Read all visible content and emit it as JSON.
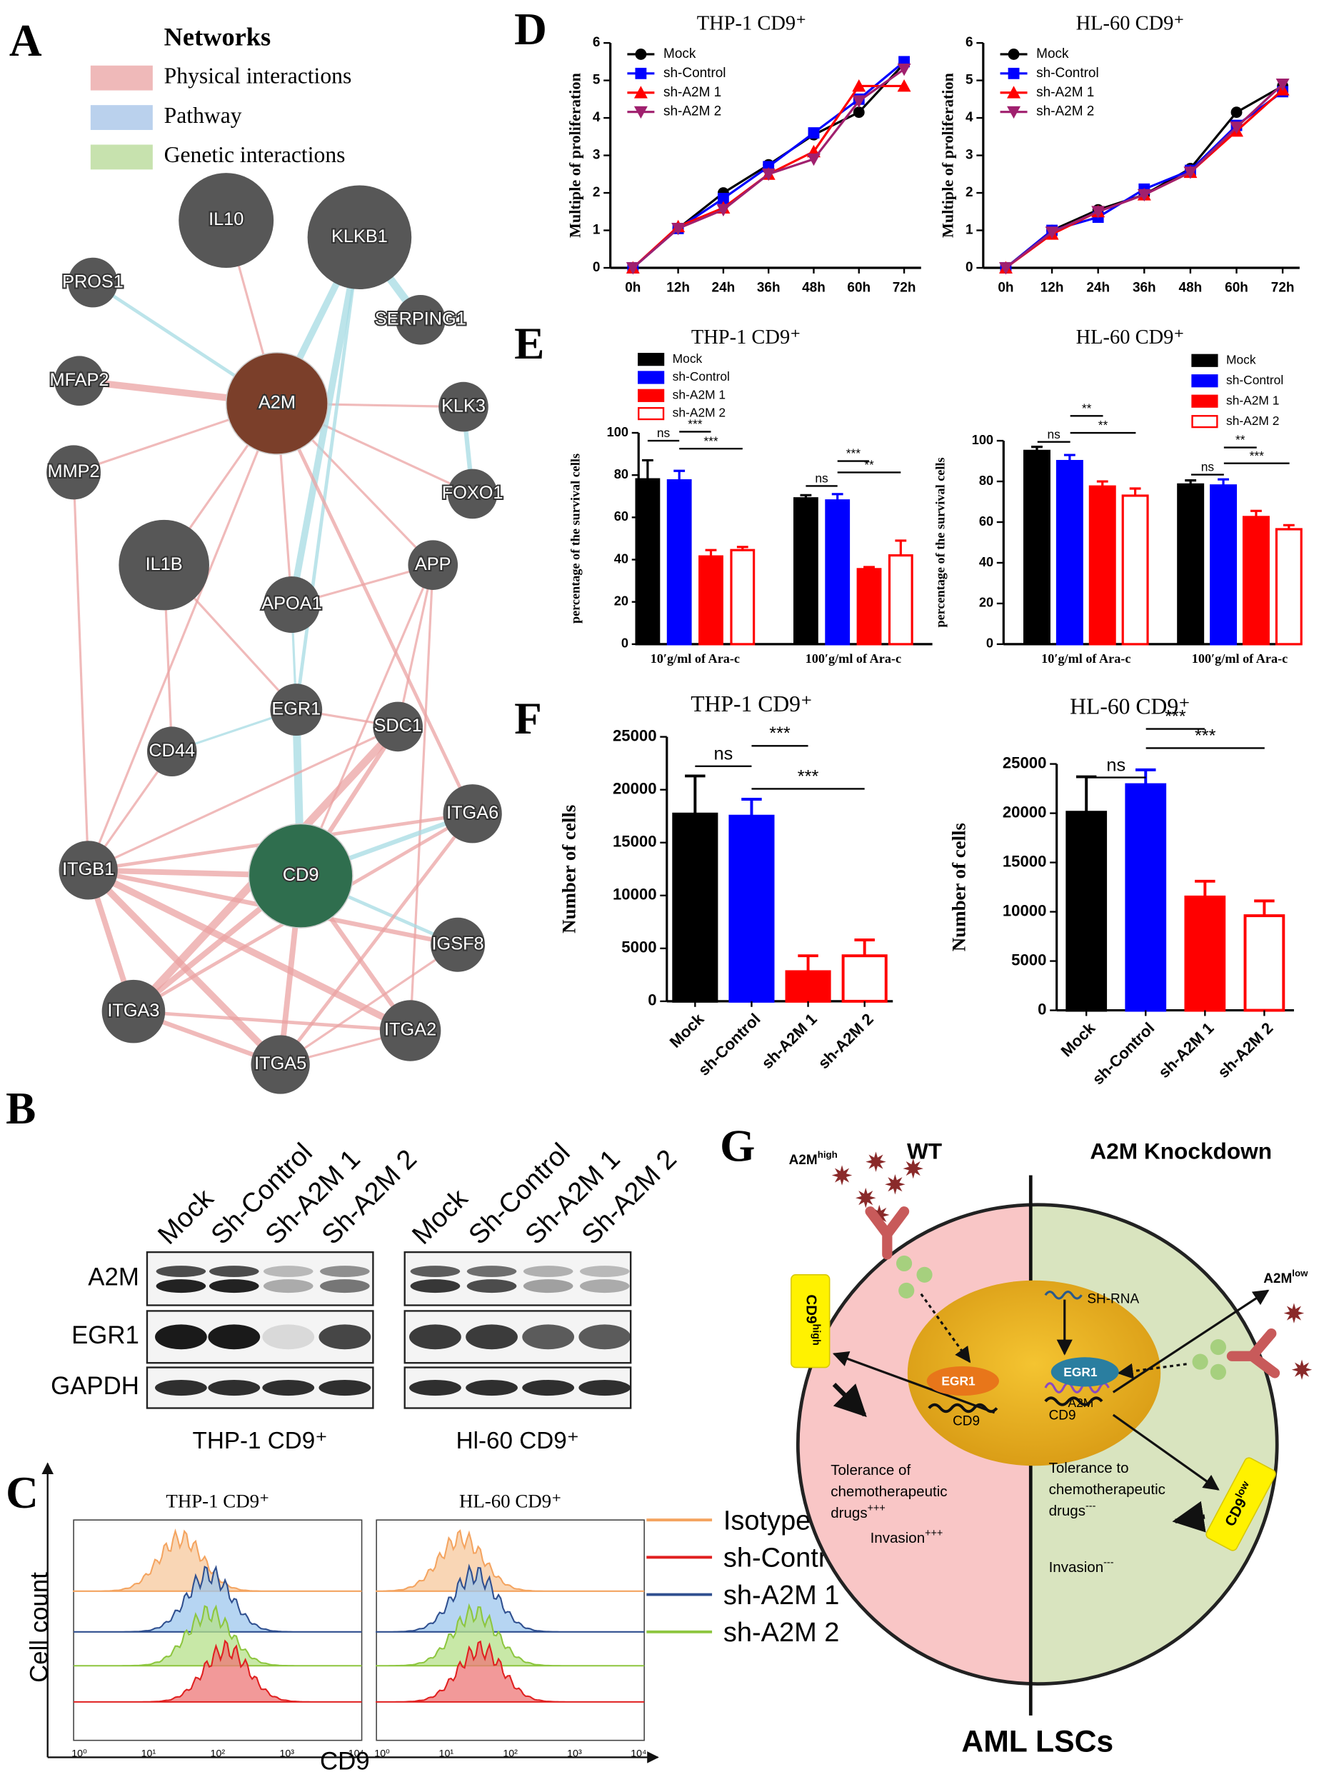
{
  "panel_labels": [
    "A",
    "B",
    "C",
    "D",
    "E",
    "F",
    "G"
  ],
  "network": {
    "legend_title": "Networks",
    "legend": [
      {
        "label": "Physical interactions",
        "color": "#eba8a8"
      },
      {
        "label": "Pathway",
        "color": "#a9c6e8"
      },
      {
        "label": "Genetic interactions",
        "color": "#b9db9a"
      }
    ],
    "nodes": [
      "IL10",
      "KLKB1",
      "PROS1",
      "SERPING1",
      "MFAP2",
      "A2M",
      "KLK3",
      "MMP2",
      "FOXO1",
      "IL1B",
      "APP",
      "APOA1",
      "EGR1",
      "SDC1",
      "CD44",
      "ITGA6",
      "ITGB1",
      "CD9",
      "IGSF8",
      "ITGA3",
      "ITGA2",
      "ITGA5"
    ]
  },
  "blot": {
    "lanes": [
      "Mock",
      "Sh-Control",
      "Sh-A2M 1",
      "Sh-A2M 2"
    ],
    "rows": [
      "A2M",
      "EGR1",
      "GAPDH"
    ],
    "cells": [
      "THP-1 CD9⁺",
      "Hl-60 CD9⁺"
    ]
  },
  "flow": {
    "titles": [
      "THP-1 CD9⁺",
      "HL-60 CD9⁺"
    ],
    "x_label": "CD9",
    "y_label": "Cell count",
    "xticks": [
      "10⁰",
      "10¹",
      "10²",
      "10³",
      "10⁴"
    ],
    "legend": [
      {
        "name": "Isotype",
        "color": "#f4a460"
      },
      {
        "name": "sh-Control",
        "color": "#e02020"
      },
      {
        "name": "sh-A2M 1",
        "color": "#2f4f8f"
      },
      {
        "name": "sh-A2M 2",
        "color": "#8dc63f"
      }
    ]
  },
  "chart_data": [
    {
      "type": "line",
      "title": "THP-1 CD9⁺",
      "y_label": "Multiple of proliferation",
      "categories": [
        "0h",
        "12h",
        "24h",
        "36h",
        "48h",
        "60h",
        "72h"
      ],
      "ylim": [
        0,
        6
      ],
      "yticks": [
        0,
        1,
        2,
        3,
        4,
        5,
        6
      ],
      "series": [
        {
          "name": "Mock",
          "color": "#000000",
          "marker": "circle",
          "values": [
            0,
            1.05,
            2.0,
            2.75,
            3.55,
            4.15,
            5.45
          ]
        },
        {
          "name": "sh-Control",
          "color": "#0000ff",
          "marker": "square",
          "values": [
            0,
            1.05,
            1.85,
            2.7,
            3.6,
            4.5,
            5.5
          ]
        },
        {
          "name": "sh-A2M 1",
          "color": "#ff0000",
          "marker": "triangle",
          "values": [
            0,
            1.1,
            1.6,
            2.5,
            3.1,
            4.85,
            4.85
          ]
        },
        {
          "name": "sh-A2M 2",
          "color": "#a0206e",
          "marker": "triangle-down",
          "values": [
            0,
            1.05,
            1.55,
            2.5,
            2.9,
            4.45,
            5.3
          ]
        }
      ]
    },
    {
      "type": "line",
      "title": "HL-60 CD9⁺",
      "y_label": "Multiple of proliferation",
      "categories": [
        "0h",
        "12h",
        "24h",
        "36h",
        "48h",
        "60h",
        "72h"
      ],
      "ylim": [
        0,
        6
      ],
      "yticks": [
        0,
        1,
        2,
        3,
        4,
        5,
        6
      ],
      "series": [
        {
          "name": "Mock",
          "color": "#000000",
          "marker": "circle",
          "values": [
            0,
            1.0,
            1.55,
            1.95,
            2.65,
            4.15,
            4.85
          ]
        },
        {
          "name": "sh-Control",
          "color": "#0000ff",
          "marker": "square",
          "values": [
            0,
            1.0,
            1.35,
            2.1,
            2.6,
            3.8,
            4.7
          ]
        },
        {
          "name": "sh-A2M 1",
          "color": "#ff0000",
          "marker": "triangle",
          "values": [
            0,
            0.9,
            1.5,
            1.95,
            2.55,
            3.65,
            4.75
          ]
        },
        {
          "name": "sh-A2M 2",
          "color": "#a0206e",
          "marker": "triangle-down",
          "values": [
            0,
            0.95,
            1.5,
            1.95,
            2.55,
            3.75,
            4.9
          ]
        }
      ]
    },
    {
      "type": "grouped-bar",
      "title": "THP-1 CD9⁺",
      "y_label": "percentage of the survival cells",
      "categories": [
        "10′g/ml of Ara-c",
        "100′g/ml of Ara-c"
      ],
      "ylim": [
        0,
        100
      ],
      "yticks": [
        0,
        20,
        40,
        60,
        80,
        100
      ],
      "series": [
        {
          "name": "Mock",
          "color": "#000000",
          "fill": "#000000",
          "values": [
            78,
            69
          ],
          "errors": [
            9,
            1.5
          ]
        },
        {
          "name": "sh-Control",
          "color": "#0000ff",
          "fill": "#0000ff",
          "values": [
            77.5,
            68
          ],
          "errors": [
            4.5,
            3
          ]
        },
        {
          "name": "sh-A2M 1",
          "color": "#ff0000",
          "fill": "#ff0000",
          "values": [
            41.5,
            35.5
          ],
          "errors": [
            3,
            1
          ]
        },
        {
          "name": "sh-A2M 2",
          "color": "#ff0000",
          "fill": "#ffffff",
          "values": [
            44.5,
            42
          ],
          "errors": [
            1.5,
            7
          ]
        }
      ],
      "annotations": [
        "ns",
        "***",
        "***",
        "ns",
        "***",
        "**"
      ]
    },
    {
      "type": "grouped-bar",
      "title": "HL-60 CD9⁺",
      "y_label": "percentage of the survival cells",
      "categories": [
        "10′g/ml of Ara-c",
        "100′g/ml of Ara-c"
      ],
      "ylim": [
        0,
        100
      ],
      "yticks": [
        0,
        20,
        40,
        60,
        80,
        100
      ],
      "series": [
        {
          "name": "Mock",
          "color": "#000000",
          "fill": "#000000",
          "values": [
            95,
            78.5
          ],
          "errors": [
            2,
            2
          ]
        },
        {
          "name": "sh-Control",
          "color": "#0000ff",
          "fill": "#0000ff",
          "values": [
            90,
            78
          ],
          "errors": [
            3,
            3
          ]
        },
        {
          "name": "sh-A2M 1",
          "color": "#ff0000",
          "fill": "#ff0000",
          "values": [
            77.5,
            62.5
          ],
          "errors": [
            2.5,
            3
          ]
        },
        {
          "name": "sh-A2M 2",
          "color": "#ff0000",
          "fill": "#ffffff",
          "values": [
            73,
            56.5
          ],
          "errors": [
            3.5,
            2
          ]
        }
      ],
      "annotations": [
        "ns",
        "**",
        "**",
        "ns",
        "**",
        "***"
      ]
    },
    {
      "type": "bar",
      "title": "THP-1 CD9⁺",
      "y_label": "Number of cells",
      "categories": [
        "Mock",
        "sh-Control",
        "sh-A2M 1",
        "sh-A2M 2"
      ],
      "ylim": [
        0,
        25000
      ],
      "yticks": [
        0,
        5000,
        10000,
        15000,
        20000,
        25000
      ],
      "values": [
        17700,
        17500,
        2800,
        4300
      ],
      "errors": [
        3600,
        1600,
        1500,
        1500
      ],
      "colors": [
        "#000000",
        "#0000ff",
        "#ff0000",
        "#ff0000"
      ],
      "fills": [
        "#000000",
        "#0000ff",
        "#ff0000",
        "#ffffff"
      ],
      "annotations": [
        "ns",
        "***",
        "***"
      ]
    },
    {
      "type": "bar",
      "title": "HL-60 CD9⁺",
      "y_label": "Number of cells",
      "categories": [
        "Mock",
        "sh-Control",
        "sh-A2M 1",
        "sh-A2M 2"
      ],
      "ylim": [
        0,
        25000
      ],
      "yticks": [
        0,
        5000,
        10000,
        15000,
        20000,
        25000
      ],
      "values": [
        20100,
        22900,
        11500,
        9600
      ],
      "errors": [
        3600,
        1500,
        1600,
        1500
      ],
      "colors": [
        "#000000",
        "#0000ff",
        "#ff0000",
        "#ff0000"
      ],
      "fills": [
        "#000000",
        "#0000ff",
        "#ff0000",
        "#ffffff"
      ],
      "annotations": [
        "ns",
        "***",
        "***"
      ]
    }
  ],
  "diagram": {
    "wt": "WT",
    "knockdown": "A2M Knockdown",
    "a2m_high": {
      "text": "A2M",
      "sup": "high"
    },
    "cd9_high": {
      "text": "CD9",
      "sup": "high"
    },
    "sh_rna": "SH-RNA",
    "a2m": "A2M",
    "a2m_low": {
      "text": "A2M",
      "sup": "low"
    },
    "egr1": [
      "EGR1",
      "EGR1"
    ],
    "cd9": [
      "CD9",
      "CD9"
    ],
    "left_effects": {
      "lines": [
        "Tolerance of",
        "chemotherapeutic",
        "drugs"
      ],
      "sup": "+++"
    },
    "left_invasion": {
      "text": "Invasion",
      "sup": "+++"
    },
    "right_effects": {
      "lines": [
        "Tolerance to",
        "chemotherapeutic",
        "drugs"
      ],
      "sup": "---"
    },
    "right_invasion": {
      "text": "Invasion",
      "sup": "---"
    },
    "cd9_low": {
      "text": "CD9",
      "sup": "low"
    },
    "title": "AML LSCs"
  }
}
